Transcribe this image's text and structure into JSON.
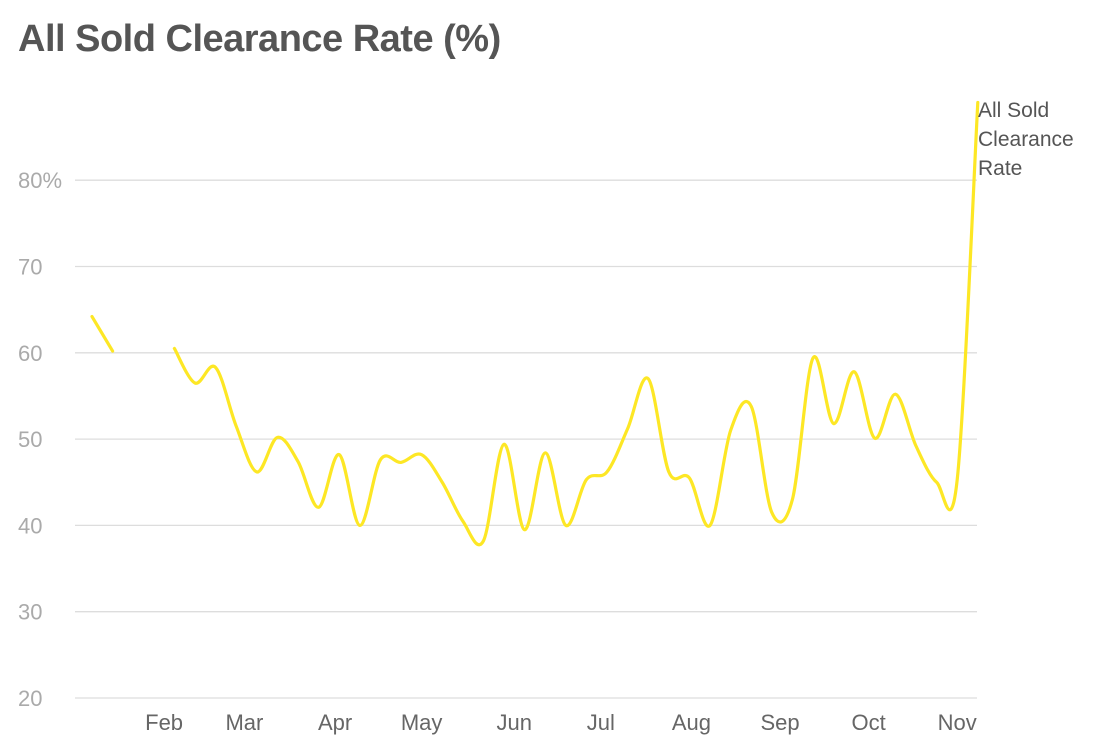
{
  "chart_data": {
    "type": "line",
    "title": "All Sold Clearance Rate (%)",
    "xlabel": "",
    "ylabel": "",
    "ylim": [
      20,
      90
    ],
    "yticks": [
      20,
      30,
      40,
      50,
      60,
      70,
      80
    ],
    "ytick_labels": [
      "20",
      "30",
      "40",
      "50",
      "60",
      "70",
      "80%"
    ],
    "xticks": [
      {
        "label": "Feb",
        "week": 4.5
      },
      {
        "label": "Mar",
        "week": 8.4
      },
      {
        "label": "Apr",
        "week": 12.8
      },
      {
        "label": "May",
        "week": 17.0
      },
      {
        "label": "Jun",
        "week": 21.5
      },
      {
        "label": "Jul",
        "week": 25.7
      },
      {
        "label": "Aug",
        "week": 30.1
      },
      {
        "label": "Sep",
        "week": 34.4
      },
      {
        "label": "Oct",
        "week": 38.7
      },
      {
        "label": "Nov",
        "week": 43.0
      }
    ],
    "grid": true,
    "color": "#fde725",
    "series": [
      {
        "name": "All Sold Clearance Rate",
        "x": [
          1,
          2,
          3,
          4,
          5,
          6,
          7,
          8,
          9,
          10,
          11,
          12,
          13,
          14,
          15,
          16,
          17,
          18,
          19,
          20,
          21,
          22,
          23,
          24,
          25,
          26,
          27,
          28,
          29,
          30,
          31,
          32,
          33,
          34,
          35,
          36,
          37,
          38,
          39,
          40,
          41,
          42,
          43,
          44,
          45,
          46
        ],
        "values": [
          64.2,
          60.2,
          null,
          null,
          60.5,
          56.5,
          58.3,
          51.5,
          46.2,
          50.2,
          47.4,
          42.1,
          48.2,
          40.0,
          47.6,
          47.3,
          48.2,
          45.0,
          40.5,
          38.2,
          49.4,
          39.5,
          48.4,
          40.0,
          45.3,
          46.2,
          51.2,
          57.0,
          46.2,
          45.5,
          40.0,
          51.0,
          53.8,
          41.5,
          43.0,
          59.4,
          51.8,
          57.8,
          50.1,
          55.2,
          49.2,
          45.0,
          45.3,
          89.0,
          null,
          null
        ]
      }
    ]
  }
}
